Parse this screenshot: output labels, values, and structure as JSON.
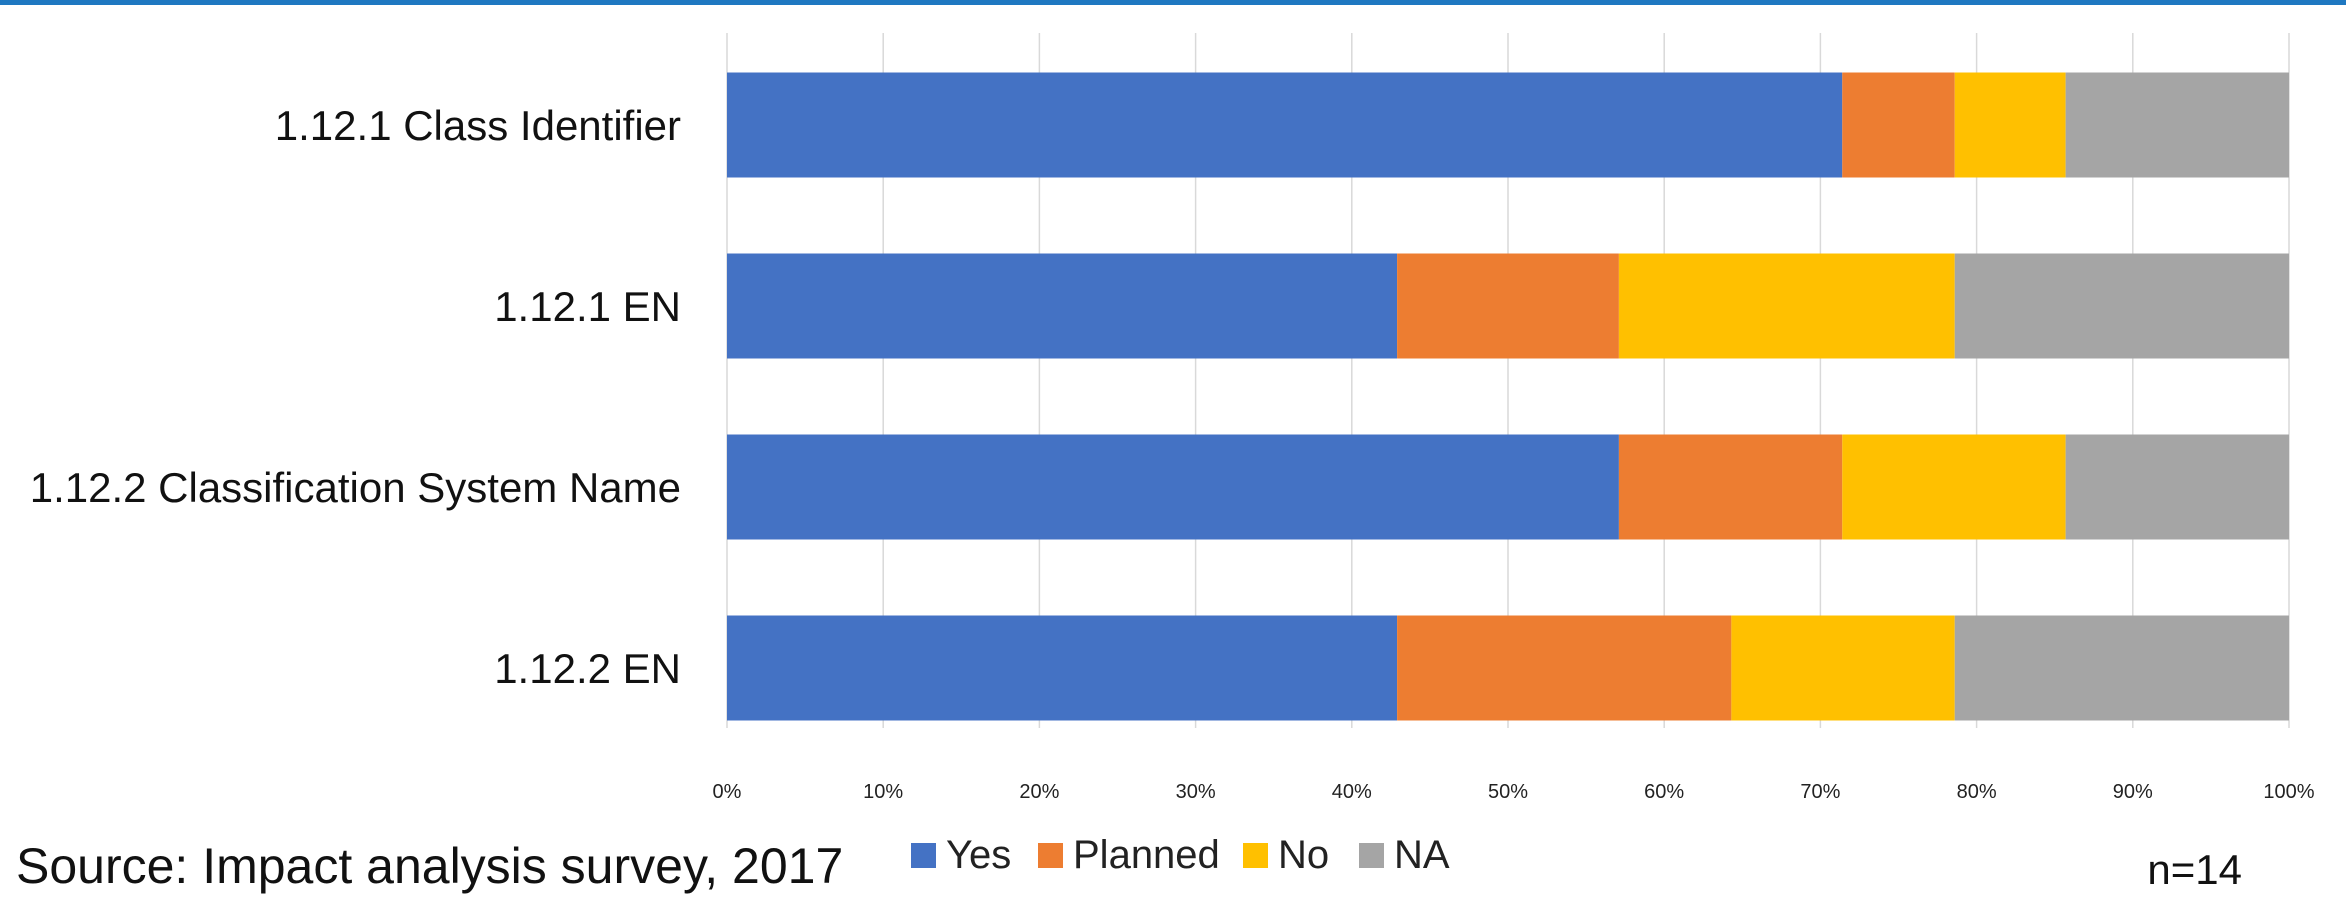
{
  "chart_data": {
    "type": "bar",
    "orientation": "horizontal",
    "stacked": true,
    "categories": [
      "1.12.1 Class Identifier",
      "1.12.1 EN",
      "1.12.2 Classification System Name",
      "1.12.2 EN"
    ],
    "series": [
      {
        "name": "Yes",
        "color": "#4472c4",
        "values": [
          71.4,
          42.9,
          57.1,
          42.9
        ]
      },
      {
        "name": "Planned",
        "color": "#ed7d31",
        "values": [
          7.2,
          14.2,
          14.3,
          21.4
        ]
      },
      {
        "name": "No",
        "color": "#ffc000",
        "values": [
          7.1,
          21.5,
          14.3,
          14.3
        ]
      },
      {
        "name": "NA",
        "color": "#a5a5a5",
        "values": [
          14.3,
          21.4,
          14.3,
          21.4
        ]
      }
    ],
    "xlim": [
      0,
      100
    ],
    "xticks": [
      "0%",
      "10%",
      "20%",
      "30%",
      "40%",
      "50%",
      "60%",
      "70%",
      "80%",
      "90%",
      "100%"
    ],
    "grid": true,
    "legend_position": "bottom"
  },
  "footer": {
    "source": "Source: Impact analysis survey, 2017",
    "sample": "n=14"
  },
  "colors": {
    "top_rule": "#1f78c1",
    "gridline": "#d9d9d9"
  }
}
